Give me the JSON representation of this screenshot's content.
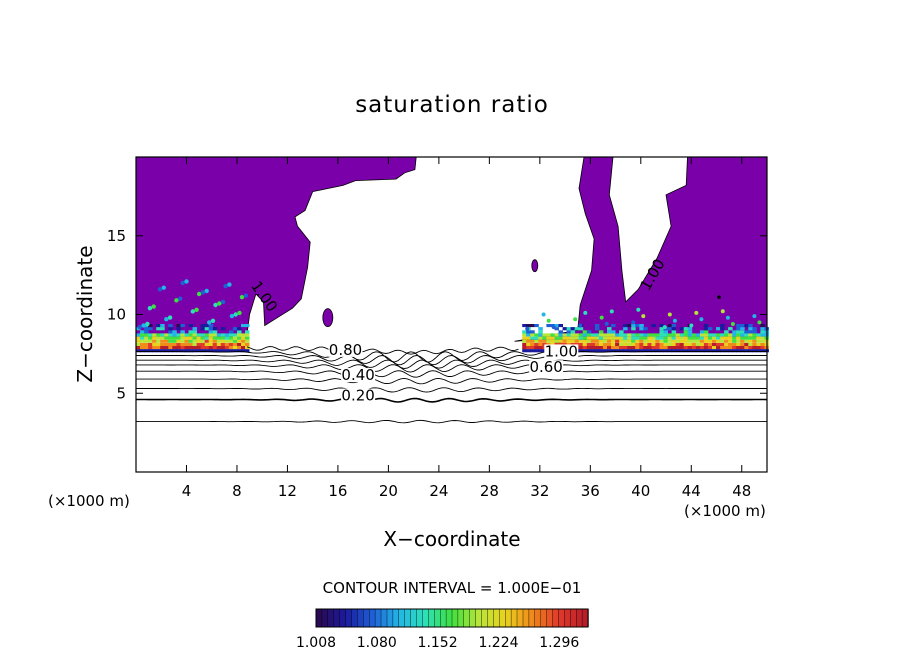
{
  "chart_data": {
    "type": "heatmap",
    "title": "saturation ratio",
    "xlabel": "X−coordinate",
    "ylabel": "Z−coordinate",
    "x_unit_left": "(×1000 m)",
    "x_unit_right": "(×1000 m)",
    "xlim": [
      0,
      50
    ],
    "ylim": [
      0,
      20
    ],
    "xticks": [
      4,
      8,
      12,
      16,
      20,
      24,
      28,
      32,
      36,
      40,
      44,
      48
    ],
    "yticks": [
      5,
      10,
      15
    ],
    "contour_interval_text": "CONTOUR INTERVAL = 1.000E−01",
    "contour_labels": [
      {
        "text": "0.20",
        "x": 17.6,
        "z": 4.6
      },
      {
        "text": "0.40",
        "x": 17.6,
        "z": 5.9
      },
      {
        "text": "0.60",
        "x": 32.5,
        "z": 6.4
      },
      {
        "text": "0.80",
        "x": 16.6,
        "z": 7.5
      },
      {
        "text": "1.00",
        "x": 33.7,
        "z": 7.4
      },
      {
        "text": "1.00",
        "x": 9.9,
        "z": 11.0
      },
      {
        "text": "1.00",
        "x": 41.2,
        "z": 12.4
      }
    ],
    "contour_levels": [
      {
        "level": 0.1,
        "z": 3.2
      },
      {
        "level": 0.2,
        "z": 4.6
      },
      {
        "level": 0.3,
        "z": 5.3
      },
      {
        "level": 0.4,
        "z": 5.9
      },
      {
        "level": 0.5,
        "z": 6.4
      },
      {
        "level": 0.6,
        "z": 6.8
      },
      {
        "level": 0.7,
        "z": 7.1
      },
      {
        "level": 0.8,
        "z": 7.4
      },
      {
        "level": 0.9,
        "z": 7.65
      }
    ],
    "colorbar": {
      "ticks": [
        "1.008",
        "1.080",
        "1.152",
        "1.224",
        "1.296"
      ],
      "min": 1.008,
      "max": 1.33,
      "colors": [
        "#2a0a55",
        "#1a1a9e",
        "#1f5fd6",
        "#22b5e6",
        "#2ee0b8",
        "#3fe03f",
        "#b7e53a",
        "#e8d21e",
        "#f08a1a",
        "#e03a2a",
        "#b81d2a"
      ]
    },
    "supersat_color": "#7a00aa",
    "grid": false
  }
}
